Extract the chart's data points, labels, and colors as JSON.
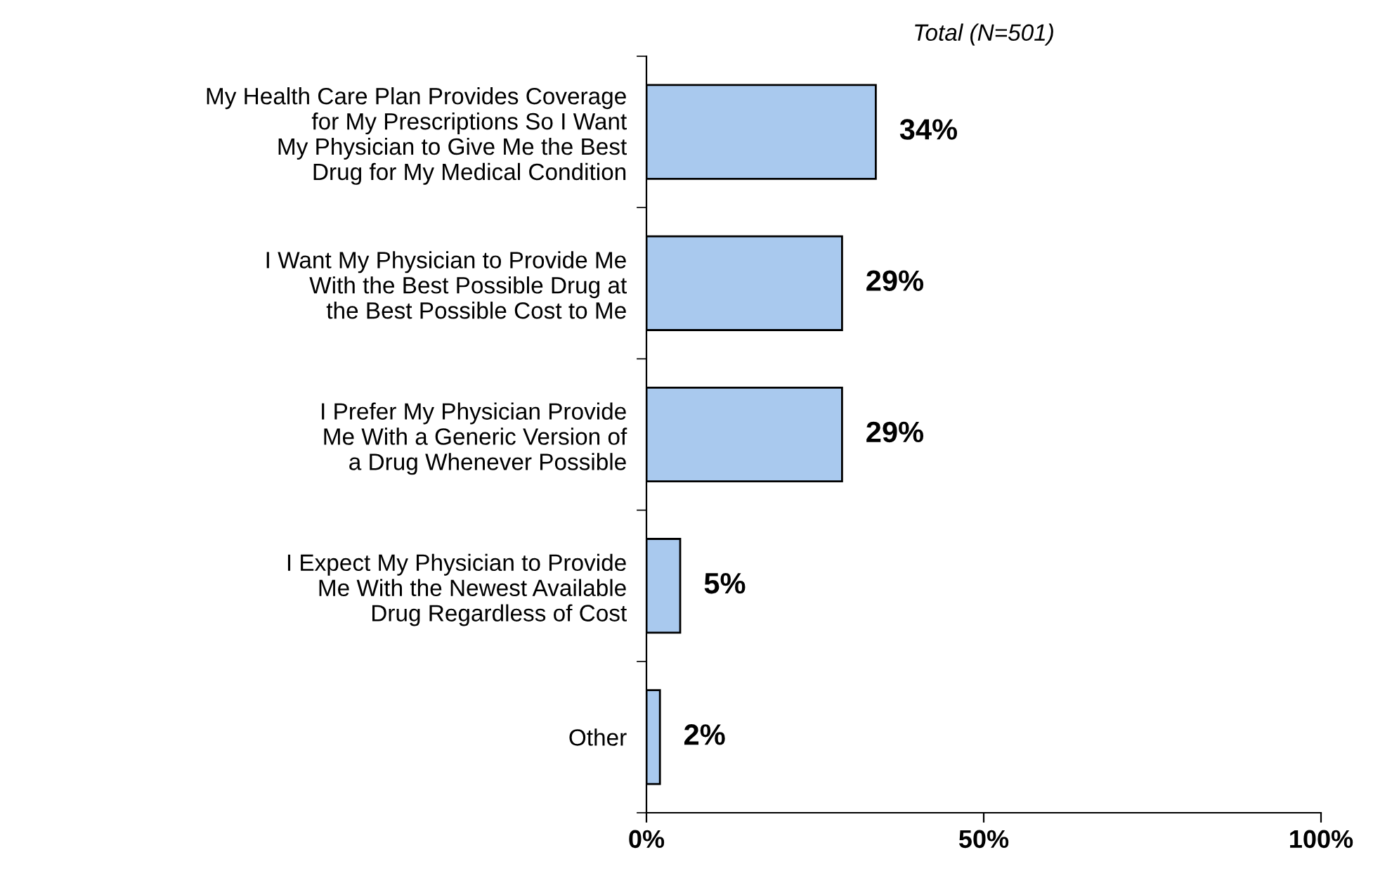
{
  "chart_data": {
    "type": "bar",
    "orientation": "horizontal",
    "title": "Total (N=501)",
    "categories": [
      "My Health Care Plan Provides Coverage\nfor My Prescriptions So I Want\nMy Physician to Give Me the Best\nDrug for My Medical Condition",
      "I Want My Physician to Provide Me\nWith the Best Possible Drug at\nthe Best Possible Cost to Me",
      "I Prefer My Physician Provide\nMe With a Generic Version of\na Drug Whenever Possible",
      "I Expect My Physician to Provide\nMe With the Newest Available\nDrug Regardless of Cost",
      "Other"
    ],
    "values": [
      34,
      29,
      29,
      5,
      2
    ],
    "value_labels": [
      "34%",
      "29%",
      "29%",
      "5%",
      "2%"
    ],
    "color": "#a9c9ee",
    "xlim": [
      0,
      100
    ],
    "xticks": [
      {
        "value": 0,
        "label": "0%"
      },
      {
        "value": 50,
        "label": "50%"
      },
      {
        "value": 100,
        "label": "100%"
      }
    ],
    "grid": false,
    "legend": false
  }
}
